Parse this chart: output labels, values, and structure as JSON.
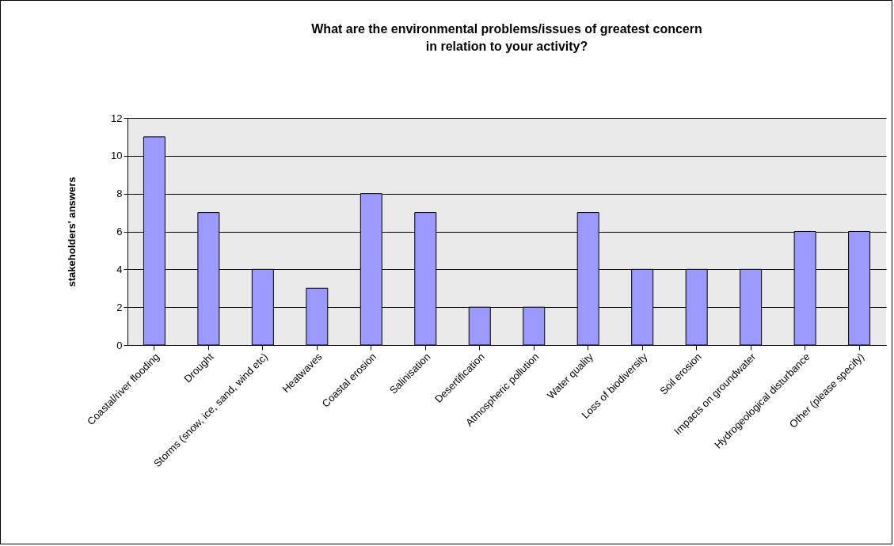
{
  "chart_data": {
    "type": "bar",
    "title": "What are the environmental problems/issues of greatest concern\nin relation to your activity?",
    "ylabel": "stakeholders' answers",
    "categories": [
      "Coastal/river flooding",
      "Drought",
      "Storms (snow, ice, sand, wind etc)",
      "Heatwaves",
      "Coastal erosion",
      "Salinisation",
      "Desertification",
      "Atmospheric pollution",
      "Water quality",
      "Loss of biodiversity",
      "Soil erosion",
      "Impacts on groundwater",
      "Hydrogeological disturbance",
      "Other (please specify)"
    ],
    "values": [
      11,
      7,
      4,
      3,
      8,
      7,
      2,
      2,
      7,
      4,
      4,
      4,
      6,
      6
    ],
    "color": "#9999ff",
    "ylim": [
      0,
      12
    ],
    "yticks": [
      0,
      2,
      4,
      6,
      8,
      10,
      12
    ],
    "grid": "y"
  }
}
